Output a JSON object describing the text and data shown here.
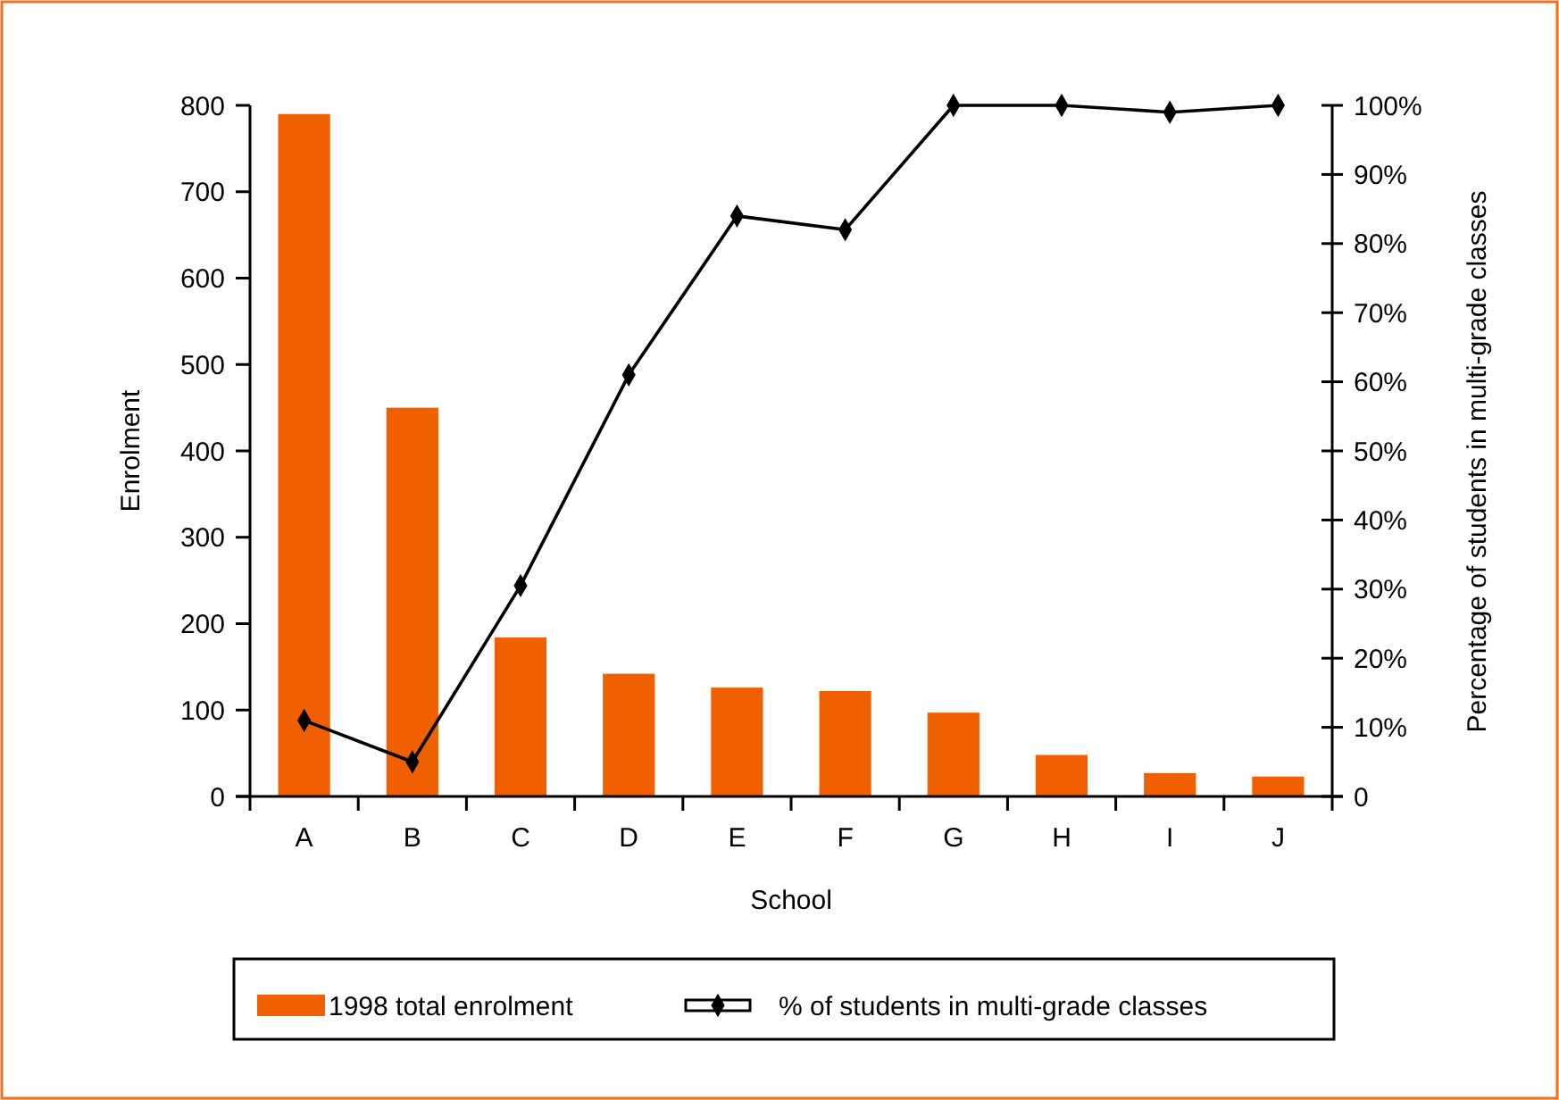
{
  "chart_data": {
    "type": "bar",
    "xlabel": "School",
    "ylabel": "Enrolment",
    "y2label": "Percentage of students in multi-grade classes",
    "categories": [
      "A",
      "B",
      "C",
      "D",
      "E",
      "F",
      "G",
      "H",
      "I",
      "J"
    ],
    "series": [
      {
        "name": "1998 total enrolment",
        "color": "#f06000",
        "values": [
          790,
          450,
          184,
          142,
          126,
          122,
          97,
          48,
          27,
          23
        ]
      },
      {
        "name": "% of students in multi-grade classes",
        "type": "line",
        "axis": "y2",
        "color": "#000000",
        "marker": "diamond",
        "values": [
          11,
          5,
          30.5,
          61,
          84,
          82,
          100,
          100,
          99,
          100
        ]
      }
    ],
    "ylim": [
      0,
      800
    ],
    "yticks": [
      0,
      100,
      200,
      300,
      400,
      500,
      600,
      700,
      800
    ],
    "y2lim": [
      0,
      100
    ],
    "y2ticks": [
      {
        "value": 0,
        "label": "0"
      },
      {
        "value": 10,
        "label": "10%"
      },
      {
        "value": 20,
        "label": "20%"
      },
      {
        "value": 30,
        "label": "30%"
      },
      {
        "value": 40,
        "label": "40%"
      },
      {
        "value": 50,
        "label": "50%"
      },
      {
        "value": 60,
        "label": "60%"
      },
      {
        "value": 70,
        "label": "70%"
      },
      {
        "value": 80,
        "label": "80%"
      },
      {
        "value": 90,
        "label": "90%"
      },
      {
        "value": 100,
        "label": "100%"
      }
    ],
    "legend": "bottom",
    "grid": false
  }
}
